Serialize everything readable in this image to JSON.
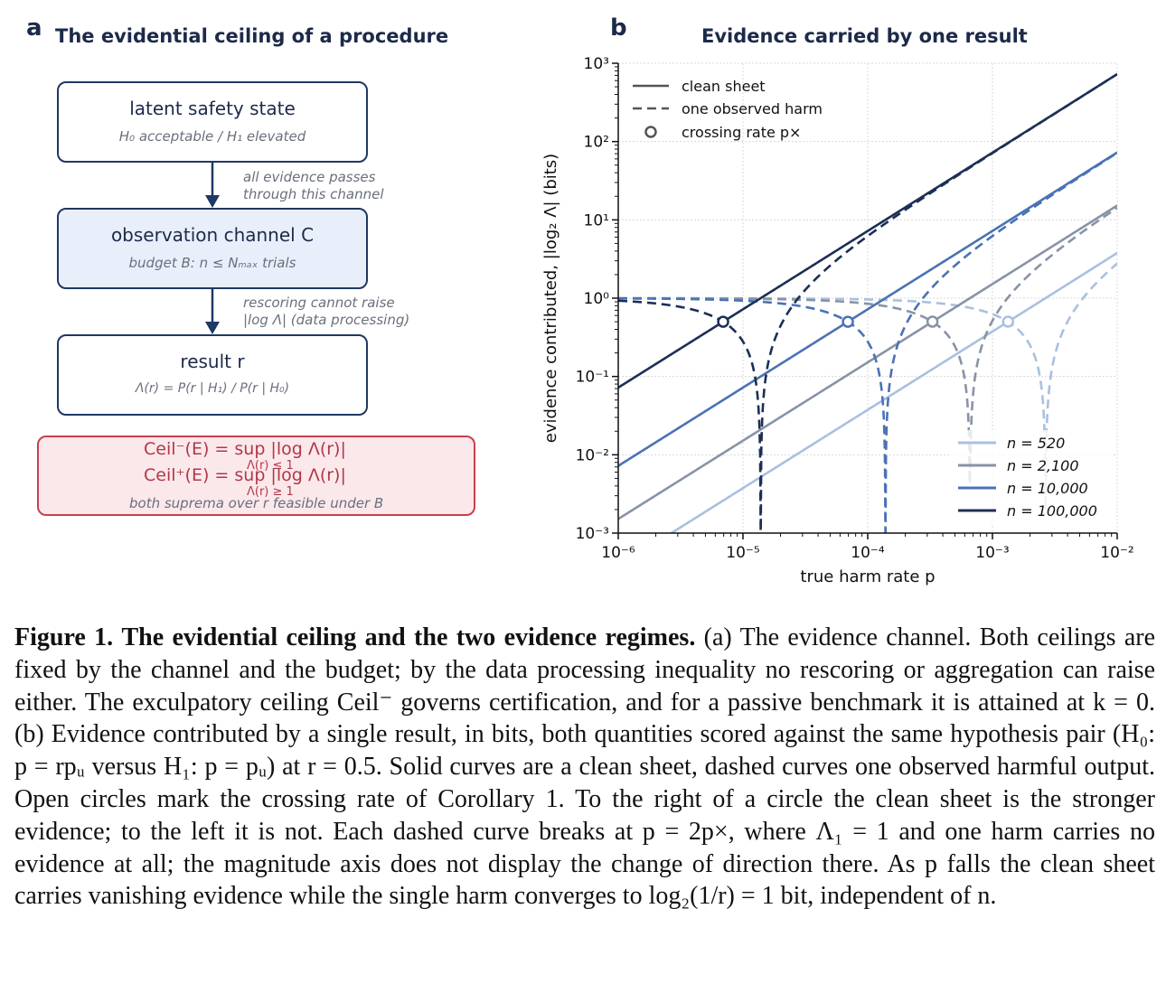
{
  "panel_a": {
    "letter": "a",
    "title": "The evidential ceiling of a procedure",
    "box1": {
      "title": "latent safety state",
      "sub": "H₀ acceptable  /  H₁ elevated"
    },
    "arrow1_note": [
      "all evidence passes",
      "through this channel"
    ],
    "box2": {
      "title": "observation channel C",
      "sub": "budget B:  n ≤ Nₘₐₓ trials"
    },
    "arrow2_note": [
      "rescoring cannot raise",
      "|log Λ| (data processing)"
    ],
    "box3": {
      "title": "result r",
      "sub": "Λ(r) = P(r | H₁) / P(r | H₀)"
    },
    "ceiling": {
      "line1": "Ceil⁻(E)  =   sup   |log Λ(r)|",
      "line1_sub": "Λ(r) ≤ 1",
      "line2": "Ceil⁺(E)  =   sup   |log Λ(r)|",
      "line2_sub": "Λ(r) ≥ 1",
      "note": "both suprema over r feasible under B"
    }
  },
  "panel_b": {
    "letter": "b",
    "title": "Evidence carried by one result"
  },
  "chart_data": {
    "type": "line",
    "title": "Evidence carried by one result",
    "xlabel": "true harm rate p",
    "ylabel": "evidence contributed,  |log₂ Λ|  (bits)",
    "x_scale": "log",
    "y_scale": "log",
    "xlim": [
      1e-06,
      0.01
    ],
    "ylim": [
      0.001,
      1000.0
    ],
    "x_ticks": [
      "10⁻⁶",
      "10⁻⁵",
      "10⁻⁴",
      "10⁻³",
      "10⁻²"
    ],
    "y_ticks": [
      "10⁻³",
      "10⁻²",
      "10⁻¹",
      "10⁰",
      "10¹",
      "10²",
      "10³"
    ],
    "r": 0.5,
    "grid": true,
    "style_legend": [
      {
        "style": "solid",
        "label": "clean sheet"
      },
      {
        "style": "dashed",
        "label": "one observed harm"
      },
      {
        "style": "circle",
        "label": "crossing rate p×"
      }
    ],
    "legend_position": "top-left",
    "n_legend_position": "bottom-right",
    "series": [
      {
        "name": "n = 520",
        "n": 520,
        "color": "#a9c0e0"
      },
      {
        "name": "n = 2,100",
        "n": 2100,
        "color": "#8893a6"
      },
      {
        "name": "n = 10,000",
        "n": 10000,
        "color": "#4a72b5"
      },
      {
        "name": "n = 100,000",
        "n": 100000,
        "color": "#1c2f55"
      }
    ]
  },
  "caption": {
    "label": "Figure 1.",
    "headline": "The evidential ceiling and the two evidence regimes.",
    "body": "(a) The evidence channel. Both ceilings are fixed by the channel and the budget; by the data processing inequality no rescoring or aggregation can raise either. The exculpatory ceiling Ceil⁻ governs certification, and for a passive benchmark it is attained at k = 0. (b) Evidence contributed by a single result, in bits, both quantities scored against the same hypothesis pair (H₀: p = rpᵤ versus H₁: p = pᵤ) at r = 0.5. Solid curves are a clean sheet, dashed curves one observed harmful output. Open circles mark the crossing rate of Corollary 1. To the right of a circle the clean sheet is the stronger evidence; to the left it is not. Each dashed curve breaks at p = 2p×, where Λ₁ = 1 and one harm carries no evidence at all; the magnitude axis does not display the change of direction there. As p falls the clean sheet carries vanishing evidence while the single harm converges to log₂(1/r) = 1 bit, independent of n."
  }
}
